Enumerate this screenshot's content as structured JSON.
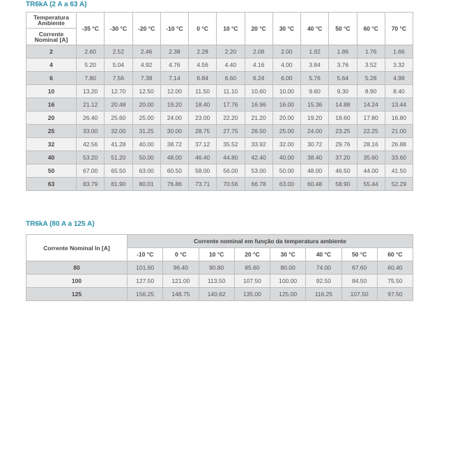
{
  "table1": {
    "title": "TR6kA (2 A a 63 A)",
    "corner_top": "Temperatura Ambiente",
    "corner_bottom": "Corrente Nominal [A]",
    "temps": [
      "-35 °C",
      "-30 °C",
      "-20 °C",
      "-10 °C",
      "0 °C",
      "10 °C",
      "20 °C",
      "30 °C",
      "40 °C",
      "50 °C",
      "60 °C",
      "70 °C"
    ],
    "rows": [
      {
        "in": "2",
        "v": [
          "2.60",
          "2.52",
          "2.46",
          "2.38",
          "2.28",
          "2.20",
          "2.08",
          "2.00",
          "1.92",
          "1.86",
          "1.76",
          "1.66"
        ]
      },
      {
        "in": "4",
        "v": [
          "5.20",
          "5.04",
          "4.92",
          "4.76",
          "4.56",
          "4.40",
          "4.16",
          "4.00",
          "3.84",
          "3.76",
          "3.52",
          "3.32"
        ]
      },
      {
        "in": "6",
        "v": [
          "7.80",
          "7.56",
          "7.38",
          "7.14",
          "6.84",
          "6.60",
          "6.24",
          "6.00",
          "5.76",
          "5.64",
          "5.28",
          "4.98"
        ]
      },
      {
        "in": "10",
        "v": [
          "13.20",
          "12.70",
          "12.50",
          "12.00",
          "11.50",
          "11.10",
          "10.60",
          "10.00",
          "9.60",
          "9.30",
          "8.90",
          "8.40"
        ]
      },
      {
        "in": "16",
        "v": [
          "21.12",
          "20.48",
          "20.00",
          "19.20",
          "18.40",
          "17.76",
          "16.96",
          "16.00",
          "15.36",
          "14.88",
          "14.24",
          "13.44"
        ]
      },
      {
        "in": "20",
        "v": [
          "26.40",
          "25.60",
          "25.00",
          "24.00",
          "23.00",
          "22.20",
          "21.20",
          "20.00",
          "19.20",
          "18.60",
          "17.80",
          "16.80"
        ]
      },
      {
        "in": "25",
        "v": [
          "33.00",
          "32.00",
          "31.25",
          "30.00",
          "28.75",
          "27.75",
          "26.50",
          "25.00",
          "24.00",
          "23.25",
          "22.25",
          "21.00"
        ]
      },
      {
        "in": "32",
        "v": [
          "42.56",
          "41.28",
          "40.00",
          "38.72",
          "37.12",
          "35.52",
          "33.92",
          "32.00",
          "30.72",
          "29.76",
          "28.16",
          "26.88"
        ]
      },
      {
        "in": "40",
        "v": [
          "53.20",
          "51.20",
          "50.00",
          "48.00",
          "46.40",
          "44.80",
          "42.40",
          "40.00",
          "38.40",
          "37.20",
          "35.60",
          "33.60"
        ]
      },
      {
        "in": "50",
        "v": [
          "67.00",
          "65.50",
          "63.00",
          "60.50",
          "58.00",
          "56.00",
          "53.00",
          "50.00",
          "48.00",
          "46.50",
          "44.00",
          "41.50"
        ]
      },
      {
        "in": "63",
        "v": [
          "83.79",
          "81.90",
          "80.01",
          "76.86",
          "73.71",
          "70.56",
          "66.78",
          "63.00",
          "60.48",
          "58.90",
          "55.44",
          "52.29"
        ]
      }
    ]
  },
  "table2": {
    "title": "TR6kA (80 A a 125 A)",
    "row_header": "Corrente Nominal In [A]",
    "group_header": "Corrente nominal em função da temperatura ambiente",
    "temps": [
      "-10 °C",
      "0 °C",
      "10 °C",
      "20 °C",
      "30 °C",
      "40 °C",
      "50 °C",
      "60 °C"
    ],
    "rows": [
      {
        "in": "80",
        "v": [
          "101.60",
          "96.40",
          "90.80",
          "85.60",
          "80.00",
          "74.00",
          "67.60",
          "60.40"
        ]
      },
      {
        "in": "100",
        "v": [
          "127.50",
          "121.00",
          "113.50",
          "107.50",
          "100.00",
          "92.50",
          "84.50",
          "75.50"
        ]
      },
      {
        "in": "125",
        "v": [
          "156.25",
          "148.75",
          "140.62",
          "135.00",
          "125.00",
          "116.25",
          "107.50",
          "97.50"
        ]
      }
    ]
  },
  "colors": {
    "title": "#2a8fa8",
    "row_dark": "#d9dadc",
    "row_light": "#f1f1f2"
  }
}
